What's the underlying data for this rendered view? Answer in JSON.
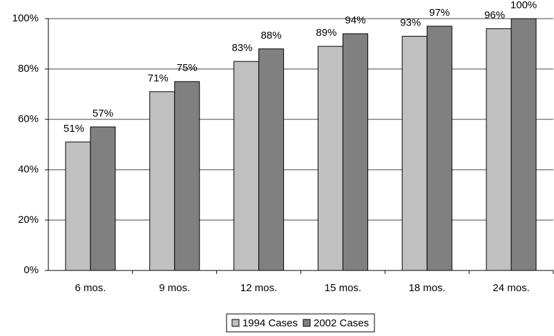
{
  "chart_data": {
    "type": "bar",
    "categories": [
      "6 mos.",
      "9 mos.",
      "12 mos.",
      "15 mos.",
      "18 mos.",
      "24 mos."
    ],
    "series": [
      {
        "name": "1994 Cases",
        "color": "#c0c0c0",
        "values": [
          51,
          71,
          83,
          89,
          93,
          96
        ],
        "value_labels": [
          "51%",
          "71%",
          "83%",
          "89%",
          "93%",
          "96%"
        ]
      },
      {
        "name": "2002 Cases",
        "color": "#808080",
        "values": [
          57,
          75,
          88,
          94,
          97,
          100
        ],
        "value_labels": [
          "57%",
          "75%",
          "88%",
          "94%",
          "97%",
          "100%"
        ]
      }
    ],
    "ylim": [
      0,
      100
    ],
    "yticks": [
      {
        "value": 0,
        "label": "0%"
      },
      {
        "value": 20,
        "label": "20%"
      },
      {
        "value": 40,
        "label": "40%"
      },
      {
        "value": 60,
        "label": "60%"
      },
      {
        "value": 80,
        "label": "80%"
      },
      {
        "value": 100,
        "label": "100%"
      }
    ],
    "grid": true,
    "legend": "bottom"
  }
}
